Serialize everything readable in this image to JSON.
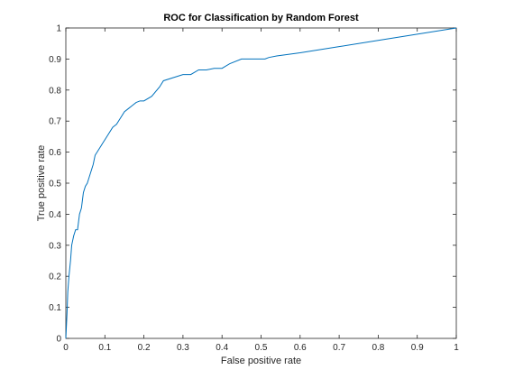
{
  "chart_data": {
    "type": "line",
    "title": "ROC for Classification by Random Forest",
    "xlabel": "False positive rate",
    "ylabel": "True positive rate",
    "xlim": [
      0,
      1
    ],
    "ylim": [
      0,
      1
    ],
    "grid": false,
    "legend": null,
    "xticks": [
      "0",
      "0.1",
      "0.2",
      "0.3",
      "0.4",
      "0.5",
      "0.6",
      "0.7",
      "0.8",
      "0.9",
      "1"
    ],
    "yticks": [
      "0",
      "0.1",
      "0.2",
      "0.3",
      "0.4",
      "0.5",
      "0.6",
      "0.7",
      "0.8",
      "0.9",
      "1"
    ],
    "line_color": "#0072BD",
    "series": [
      {
        "x": [
          0,
          0.003,
          0.005,
          0.008,
          0.012,
          0.015,
          0.02,
          0.025,
          0.03,
          0.035,
          0.04,
          0.045,
          0.05,
          0.055,
          0.06,
          0.065,
          0.07,
          0.075,
          0.08,
          0.09,
          0.095,
          0.1,
          0.11,
          0.12,
          0.13,
          0.14,
          0.15,
          0.16,
          0.17,
          0.18,
          0.19,
          0.2,
          0.22,
          0.24,
          0.25,
          0.3,
          0.31,
          0.32,
          0.34,
          0.36,
          0.38,
          0.4,
          0.42,
          0.45,
          0.47,
          0.51,
          0.52,
          0.54,
          0.6,
          0.7,
          0.8,
          0.9,
          1.0
        ],
        "y": [
          0,
          0.08,
          0.15,
          0.2,
          0.25,
          0.3,
          0.33,
          0.35,
          0.35,
          0.4,
          0.42,
          0.47,
          0.49,
          0.5,
          0.52,
          0.54,
          0.56,
          0.59,
          0.6,
          0.62,
          0.63,
          0.64,
          0.66,
          0.68,
          0.69,
          0.71,
          0.73,
          0.74,
          0.75,
          0.76,
          0.765,
          0.765,
          0.78,
          0.81,
          0.83,
          0.85,
          0.85,
          0.85,
          0.865,
          0.865,
          0.87,
          0.87,
          0.885,
          0.9,
          0.9,
          0.9,
          0.905,
          0.91,
          0.92,
          0.94,
          0.96,
          0.98,
          1.0
        ]
      }
    ]
  }
}
